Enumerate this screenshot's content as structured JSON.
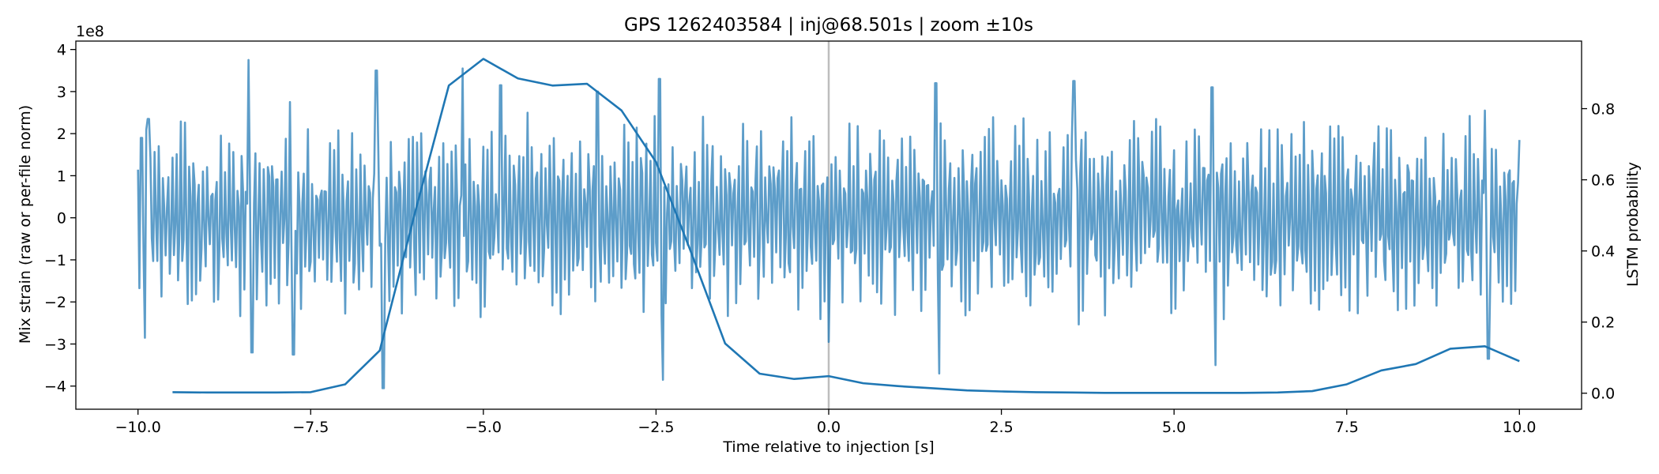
{
  "chart_data": {
    "type": "line",
    "title": "GPS 1262403584 | inj@68.501s | zoom ±10s",
    "xlabel": "Time relative to injection [s]",
    "ylabel_left": "Mix strain (raw or per-file norm)",
    "ylabel_right": "LSTM probability",
    "y_left_multiplier": "1e8",
    "xlim": [
      -10.9,
      10.9
    ],
    "ylim_left": [
      -4.55,
      4.2
    ],
    "ylim_right": [
      -0.045,
      0.99
    ],
    "x_ticks": [
      -10.0,
      -7.5,
      -5.0,
      -2.5,
      0.0,
      2.5,
      5.0,
      7.5,
      10.0
    ],
    "x_tick_labels": [
      "−10.0",
      "−7.5",
      "−5.0",
      "−2.5",
      "0.0",
      "2.5",
      "5.0",
      "7.5",
      "10.0"
    ],
    "y_left_ticks": [
      -4,
      -3,
      -2,
      -1,
      0,
      1,
      2,
      3,
      4
    ],
    "y_left_tick_labels": [
      "−4",
      "−3",
      "−2",
      "−1",
      "0",
      "1",
      "2",
      "3",
      "4"
    ],
    "y_right_ticks": [
      0.0,
      0.2,
      0.4,
      0.6,
      0.8
    ],
    "y_right_tick_labels": [
      "0.0",
      "0.2",
      "0.4",
      "0.6",
      "0.8"
    ],
    "vertical_marker_x": 0.0,
    "grid": false,
    "colors": {
      "series": "#1f77b4",
      "marker": "#bdbdbd",
      "axes": "#000000"
    },
    "series": [
      {
        "axis": "left",
        "style": "oscillatory strain trace",
        "x_range": [
          -10.0,
          10.0
        ],
        "x_step": 0.02,
        "opacity": 0.72,
        "peaks": [
          {
            "x": -9.95,
            "y": 1.9
          },
          {
            "x": -9.9,
            "y": -2.85
          },
          {
            "x": -9.85,
            "y": 2.35
          },
          {
            "x": -8.4,
            "y": 3.75
          },
          {
            "x": -8.35,
            "y": -3.2
          },
          {
            "x": -7.8,
            "y": 2.75
          },
          {
            "x": -7.75,
            "y": -3.25
          },
          {
            "x": -6.55,
            "y": 3.5
          },
          {
            "x": -6.45,
            "y": -4.05
          },
          {
            "x": -5.3,
            "y": 3.55
          },
          {
            "x": -4.75,
            "y": 3.15
          },
          {
            "x": -3.35,
            "y": 3.0
          },
          {
            "x": -2.45,
            "y": 3.3
          },
          {
            "x": -2.4,
            "y": -3.85
          },
          {
            "x": 0.0,
            "y": -2.95
          },
          {
            "x": 1.55,
            "y": 3.2
          },
          {
            "x": 1.6,
            "y": -3.7
          },
          {
            "x": 3.55,
            "y": 3.25
          },
          {
            "x": 5.55,
            "y": 3.1
          },
          {
            "x": 5.6,
            "y": -3.5
          },
          {
            "x": 9.5,
            "y": 2.55
          },
          {
            "x": 9.55,
            "y": -3.35
          },
          {
            "x": 10.0,
            "y": 1.85
          }
        ]
      },
      {
        "axis": "right",
        "style": "LSTM probability",
        "x": [
          -9.5,
          -9.0,
          -8.5,
          -8.0,
          -7.5,
          -7.0,
          -6.5,
          -6.0,
          -5.5,
          -5.0,
          -4.5,
          -4.0,
          -3.5,
          -3.0,
          -2.5,
          -2.0,
          -1.5,
          -1.0,
          -0.5,
          0.0,
          0.5,
          1.0,
          1.5,
          2.0,
          2.5,
          3.0,
          3.5,
          4.0,
          4.5,
          5.0,
          5.5,
          6.0,
          6.5,
          7.0,
          7.5,
          8.0,
          8.5,
          9.0,
          9.5,
          10.0
        ],
        "y": [
          0.003,
          0.002,
          0.002,
          0.002,
          0.003,
          0.025,
          0.12,
          0.5,
          0.865,
          0.94,
          0.885,
          0.865,
          0.87,
          0.795,
          0.65,
          0.4,
          0.14,
          0.055,
          0.04,
          0.048,
          0.028,
          0.02,
          0.014,
          0.008,
          0.005,
          0.003,
          0.002,
          0.001,
          0.001,
          0.001,
          0.001,
          0.001,
          0.002,
          0.006,
          0.025,
          0.064,
          0.082,
          0.125,
          0.132,
          0.09
        ]
      }
    ]
  }
}
